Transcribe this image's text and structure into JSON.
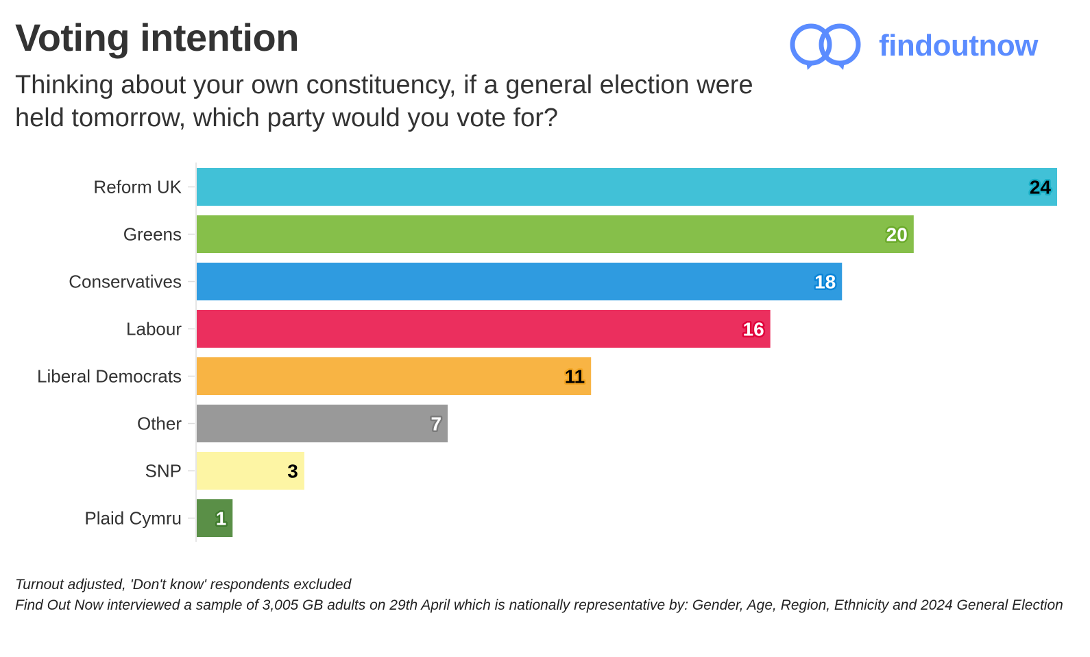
{
  "header": {
    "title": "Voting intention",
    "subtitle": "Thinking about your own constituency, if a general election were held tomorrow, which party would you vote for?"
  },
  "logo": {
    "text": "findoutnow",
    "color": "#5b8cff"
  },
  "chart_data": {
    "type": "bar",
    "orientation": "horizontal",
    "categories": [
      "Reform UK",
      "Greens",
      "Conservatives",
      "Labour",
      "Liberal Democrats",
      "Other",
      "SNP",
      "Plaid Cymru"
    ],
    "values": [
      24,
      20,
      18,
      16,
      11,
      7,
      3,
      1
    ],
    "colors": [
      "#41c1d7",
      "#86bf4a",
      "#2f9be0",
      "#eb2f5e",
      "#f8b444",
      "#999999",
      "#fdf5a4",
      "#5a8f47"
    ],
    "label_text_colors": [
      "#000000",
      "#ffffff",
      "#ffffff",
      "#ffffff",
      "#000000",
      "#ffffff",
      "#000000",
      "#ffffff"
    ],
    "label_outline_colors": [
      "#1ab0c8",
      "#6aaa2a",
      "#0a85d8",
      "#e0003a",
      "#f5a623",
      "#7a7a7a",
      "#fdf5a4",
      "#3f7a2d"
    ],
    "xlim": [
      0,
      24
    ],
    "grid": false,
    "data_labels": true
  },
  "notes": {
    "line1": "Turnout adjusted, 'Don't know' respondents excluded",
    "line2": "Find Out Now interviewed a sample of 3,005 GB adults on 29th April which is nationally representative by: Gender, Age, Region, Ethnicity and 2024 General Election"
  }
}
